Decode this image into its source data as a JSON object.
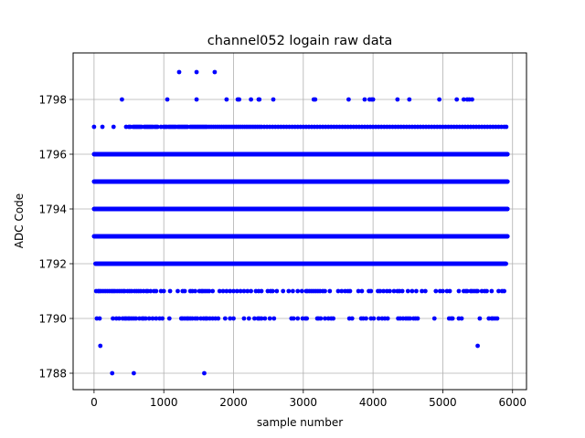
{
  "chart_data": {
    "type": "scatter",
    "title": "channel052 logain raw data",
    "xlabel": "sample number",
    "ylabel": "ADC Code",
    "xlim": [
      -300,
      6200
    ],
    "ylim": [
      1787.4,
      1799.7
    ],
    "xticks": [
      0,
      1000,
      2000,
      3000,
      4000,
      5000,
      6000
    ],
    "yticks": [
      1788,
      1790,
      1792,
      1794,
      1796,
      1798
    ],
    "xtick_labels": [
      "0",
      "1000",
      "2000",
      "3000",
      "4000",
      "5000",
      "6000"
    ],
    "ytick_labels": [
      "1788",
      "1790",
      "1792",
      "1794",
      "1796",
      "1798"
    ],
    "grid": true,
    "marker_color": "#0000ff",
    "n_samples": 5930,
    "dense_levels": [
      {
        "y": 1793,
        "x_range": [
          0,
          5930
        ]
      },
      {
        "y": 1794,
        "x_range": [
          0,
          5930
        ]
      },
      {
        "y": 1795,
        "x_range": [
          0,
          5930
        ]
      },
      {
        "y": 1796,
        "x_range": [
          0,
          5930
        ]
      },
      {
        "y": 1792,
        "x_range": [
          20,
          5910
        ]
      }
    ],
    "sparse_points": [
      {
        "y": 1791,
        "x": [
          30,
          60,
          75,
          100,
          130,
          160,
          190,
          220,
          250,
          275,
          300,
          330,
          360,
          390,
          420,
          440,
          480,
          510,
          540,
          580,
          610,
          640,
          670,
          710,
          750,
          770,
          810,
          860,
          890,
          960,
          1000,
          1090,
          1200,
          1270,
          1300,
          1380,
          1410,
          1450,
          1510,
          1540,
          1560,
          1590,
          1620,
          1650,
          1700,
          1800,
          1850,
          1900,
          1950,
          2000,
          2050,
          2100,
          2150,
          2200,
          2250,
          2320,
          2360,
          2400,
          2490,
          2530,
          2560,
          2620,
          2710,
          2790,
          2850,
          2920,
          2980,
          3040,
          3060,
          3090,
          3120,
          3150,
          3180,
          3210,
          3240,
          3280,
          3310,
          3380,
          3500,
          3550,
          3600,
          3640,
          3670,
          3790,
          3840,
          3940,
          3970,
          4070,
          4100,
          4150,
          4200,
          4240,
          4300,
          4350,
          4380,
          4420,
          4500,
          4560,
          4620,
          4700,
          4750,
          4900,
          4960,
          5000,
          5060,
          5100,
          5230,
          5300,
          5330,
          5350,
          5400,
          5420,
          5450,
          5480,
          5500,
          5560,
          5600,
          5630,
          5700,
          5800,
          5850,
          5880
        ]
      },
      {
        "y": 1790,
        "x": [
          40,
          80,
          270,
          320,
          360,
          410,
          440,
          460,
          490,
          510,
          540,
          570,
          600,
          650,
          690,
          710,
          740,
          790,
          840,
          890,
          940,
          980,
          1080,
          1250,
          1270,
          1300,
          1330,
          1350,
          1380,
          1410,
          1450,
          1480,
          1530,
          1570,
          1600,
          1620,
          1660,
          1700,
          1740,
          1780,
          1880,
          1950,
          2000,
          2150,
          2220,
          2300,
          2350,
          2370,
          2400,
          2450,
          2520,
          2580,
          2830,
          2860,
          2920,
          2990,
          3030,
          3050,
          3200,
          3220,
          3250,
          3310,
          3360,
          3400,
          3430,
          3660,
          3700,
          3830,
          3860,
          3900,
          3970,
          4010,
          4080,
          4130,
          4170,
          4210,
          4360,
          4390,
          4430,
          4470,
          4500,
          4530,
          4580,
          4610,
          4640,
          4880,
          5090,
          5120,
          5140,
          5230,
          5270,
          5530,
          5660,
          5700,
          5720,
          5750,
          5780
        ]
      },
      {
        "y": 1789,
        "x": [
          90,
          5500
        ]
      },
      {
        "y": 1788,
        "x": [
          260,
          570,
          1580
        ]
      },
      {
        "y": 1797,
        "x": [
          0,
          120,
          280,
          460,
          500,
          520,
          560,
          580,
          600,
          620,
          640,
          660,
          680,
          720,
          740,
          760,
          780,
          800,
          820,
          840,
          870,
          890,
          910,
          960,
          1000,
          1020,
          1040,
          1070,
          1090,
          1110,
          1130,
          1150,
          1170,
          1200,
          1220,
          1240,
          1260,
          1280,
          1300,
          1320,
          1340,
          1380,
          1400,
          1420,
          1440,
          1460,
          1480,
          1500,
          1520,
          1540,
          1560,
          1580,
          1600,
          1620,
          1650,
          1680,
          1710,
          1740,
          1770,
          1800,
          1830,
          1860,
          1890,
          1920,
          1950,
          1980,
          2010,
          2040,
          2070,
          2100,
          2130,
          2160,
          2190,
          2220,
          2250,
          2280,
          2310,
          2340,
          2370,
          2400,
          2440,
          2480,
          2520,
          2560,
          2600,
          2640,
          2680,
          2720,
          2760,
          2800,
          2840,
          2880,
          2920,
          2960,
          3000,
          3040,
          3080,
          3120,
          3160,
          3200,
          3240,
          3280,
          3320,
          3360,
          3400,
          3440,
          3480,
          3520,
          3560,
          3600,
          3640,
          3680,
          3720,
          3760,
          3800,
          3840,
          3880,
          3920,
          3960,
          4000,
          4040,
          4080,
          4120,
          4160,
          4200,
          4240,
          4280,
          4320,
          4360,
          4400,
          4440,
          4480,
          4520,
          4560,
          4600,
          4640,
          4680,
          4720,
          4760,
          4800,
          4840,
          4880,
          4920,
          4960,
          5000,
          5040,
          5080,
          5120,
          5160,
          5200,
          5240,
          5280,
          5320,
          5360,
          5400,
          5440,
          5480,
          5520,
          5560,
          5600,
          5640,
          5680,
          5720,
          5760,
          5800,
          5840,
          5880,
          5910
        ]
      },
      {
        "y": 1798,
        "x": [
          400,
          1050,
          1470,
          1900,
          2060,
          2080,
          2250,
          2360,
          2370,
          2570,
          3150,
          3170,
          3650,
          3880,
          3950,
          3980,
          4000,
          4350,
          4520,
          4950,
          5200,
          5300,
          5350,
          5380,
          5420
        ]
      },
      {
        "y": 1799,
        "x": [
          1220,
          1470,
          1730
        ]
      }
    ]
  }
}
